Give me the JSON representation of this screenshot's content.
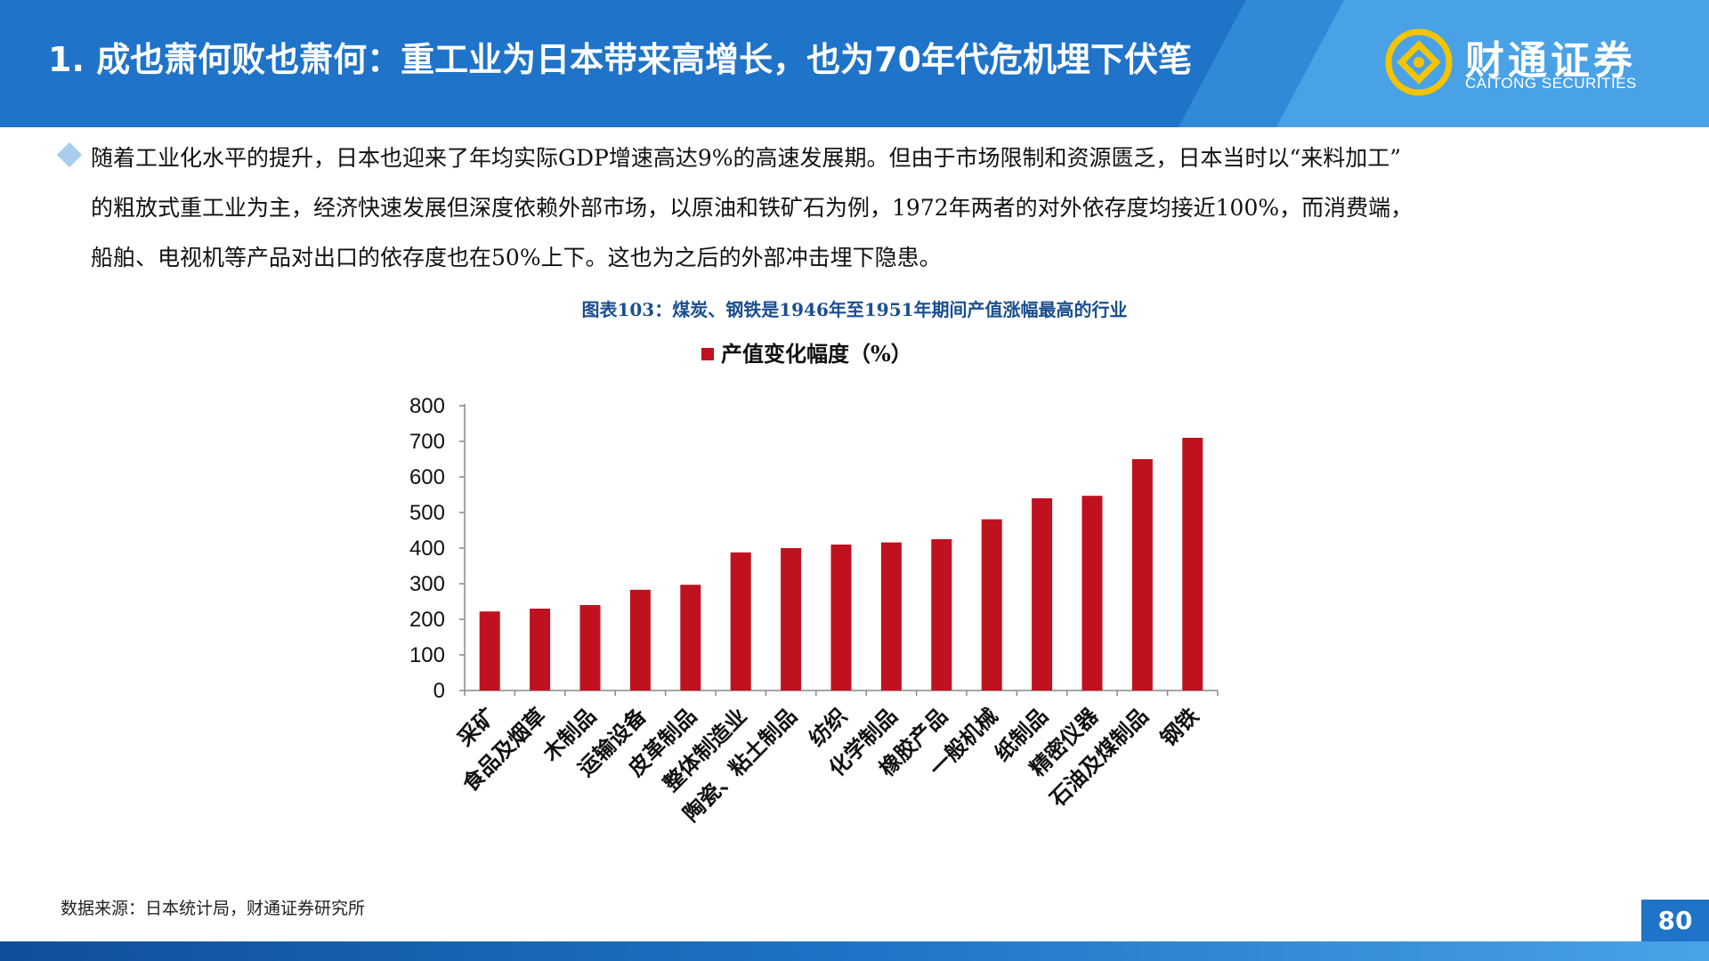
{
  "header": {
    "title": "1. 成也萧何败也萧何：重工业为日本带来高增长，也为70年代危机埋下伏笔",
    "logo_cn": "财通证券",
    "logo_en": "CAITONG SECURITIES"
  },
  "paragraph": {
    "lines": [
      "随着工业化水平的提升，日本也迎来了年均实际GDP增速高达9%的高速发展期。但由于市场限制和资源匮乏，日本当时以“来料加工”",
      "的粗放式重工业为主，经济快速发展但深度依赖外部市场，以原油和铁矿石为例，1972年两者的对外依存度均接近100%，而消费端，",
      "船舶、电视机等产品对出口的依存度也在50%上下。这也为之后的外部冲击埋下隐患。"
    ]
  },
  "chart_title": "图表103：煤炭、钢铁是1946年至1951年期间产值涨幅最高的行业",
  "chart_data": {
    "type": "bar",
    "title": "",
    "xlabel": "",
    "ylabel": "",
    "categories": [
      "采矿",
      "食品及烟草",
      "木制品",
      "运输设备",
      "皮革制品",
      "整体制造业",
      "陶瓷、粘土制品",
      "纺织",
      "化学制品",
      "橡胶产品",
      "一般机械",
      "纸制品",
      "精密仪器",
      "石油及煤制品",
      "钢铁"
    ],
    "series": [
      {
        "name": "产值变化幅度（%）",
        "color": "#c0111f",
        "values": [
          222,
          230,
          240,
          283,
          297,
          388,
          400,
          410,
          416,
          425,
          481,
          540,
          547,
          650,
          710
        ]
      }
    ],
    "ylim": [
      0,
      800
    ],
    "yticks": [
      0,
      100,
      200,
      300,
      400,
      500,
      600,
      700,
      800
    ],
    "legend": "top-center",
    "grid": false
  },
  "source": "数据来源：日本统计局，财通证券研究所",
  "page_number": "80",
  "colors": {
    "header_blue": "#1f73c8",
    "bar_red": "#c0111f",
    "chart_title_blue": "#1a4f8f"
  }
}
